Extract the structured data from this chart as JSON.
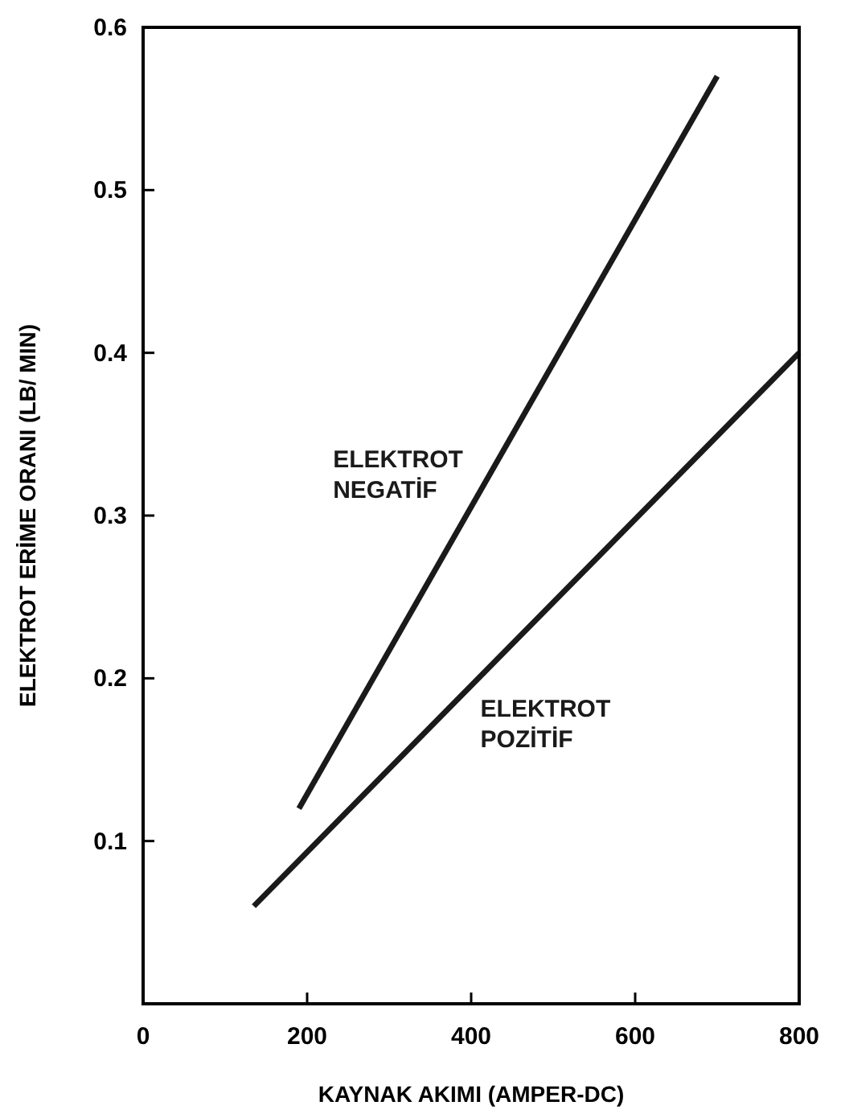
{
  "chart_data": {
    "type": "line",
    "xlabel": "KAYNAK AKIMI (AMPER-DC)",
    "ylabel": "ELEKTROT ERİME ORANI (LB/ MIN)",
    "xlim": [
      0,
      800
    ],
    "xticks": [
      0,
      200,
      400,
      600,
      800
    ],
    "ylim": [
      0,
      0.6
    ],
    "yticks": [
      0.1,
      0.2,
      0.3,
      0.4,
      0.5,
      0.6
    ],
    "grid": false,
    "marker": "none",
    "line_style": "solid",
    "series": [
      {
        "name": "ELEKTROT NEGATİF",
        "color": "#1a1a1a",
        "x": [
          190,
          700
        ],
        "values": [
          0.12,
          0.57
        ]
      },
      {
        "name": "ELEKTROT POZİTİF",
        "color": "#1a1a1a",
        "x": [
          135,
          800
        ],
        "values": [
          0.06,
          0.4
        ]
      }
    ]
  }
}
